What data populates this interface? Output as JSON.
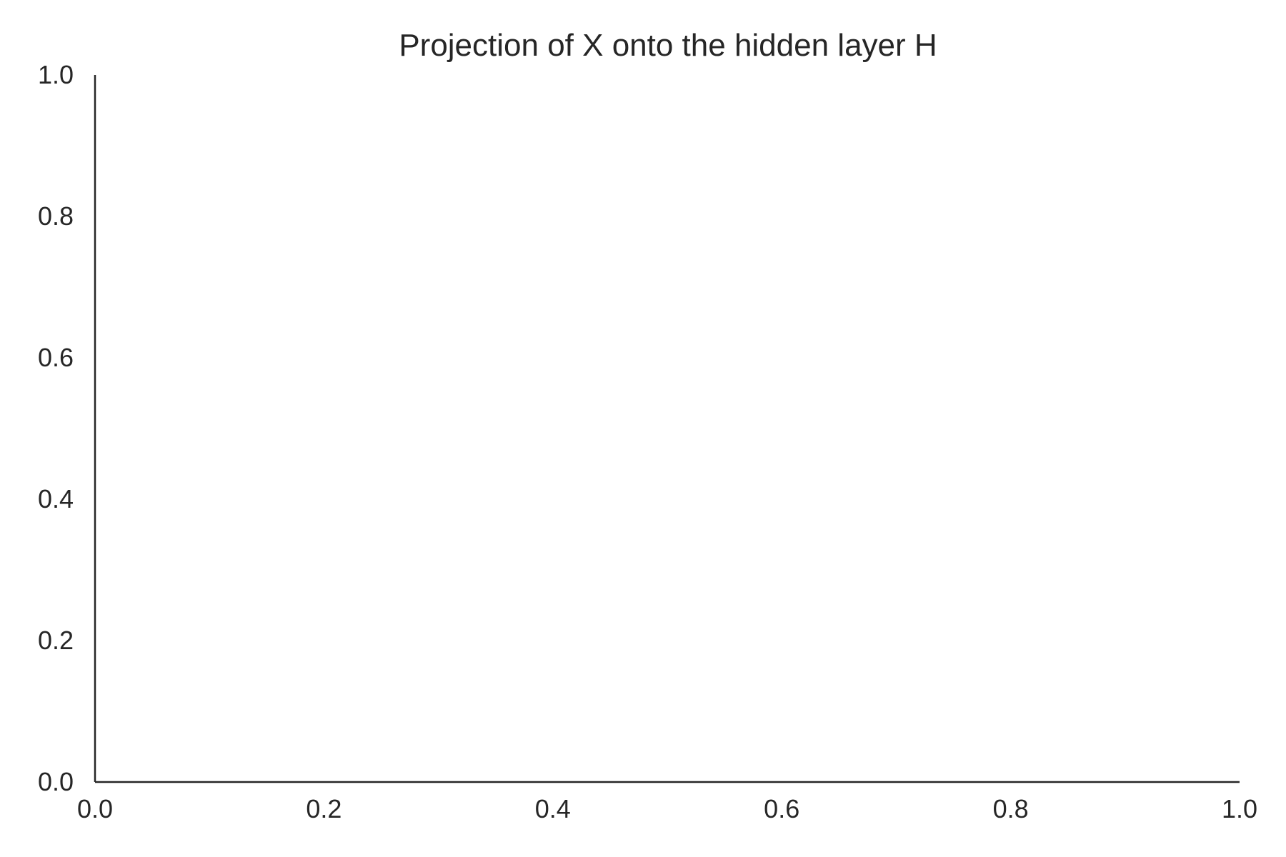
{
  "chart_data": {
    "type": "scatter",
    "title": "Projection of X onto the hidden layer H",
    "xlabel": "",
    "ylabel": "",
    "xlim": [
      0.0,
      1.0
    ],
    "ylim": [
      0.0,
      1.0
    ],
    "xticks": [
      0.0,
      0.2,
      0.4,
      0.6,
      0.8,
      1.0
    ],
    "yticks": [
      0.0,
      0.2,
      0.4,
      0.6,
      0.8,
      1.0
    ],
    "xtick_labels": [
      "0.0",
      "0.2",
      "0.4",
      "0.6",
      "0.8",
      "1.0"
    ],
    "ytick_labels": [
      "0.0",
      "0.2",
      "0.4",
      "0.6",
      "0.8",
      "1.0"
    ],
    "grid": false,
    "legend": "none",
    "series": [],
    "colors": {
      "text": "#262626",
      "axis": "#262626",
      "background": "#ffffff"
    }
  }
}
